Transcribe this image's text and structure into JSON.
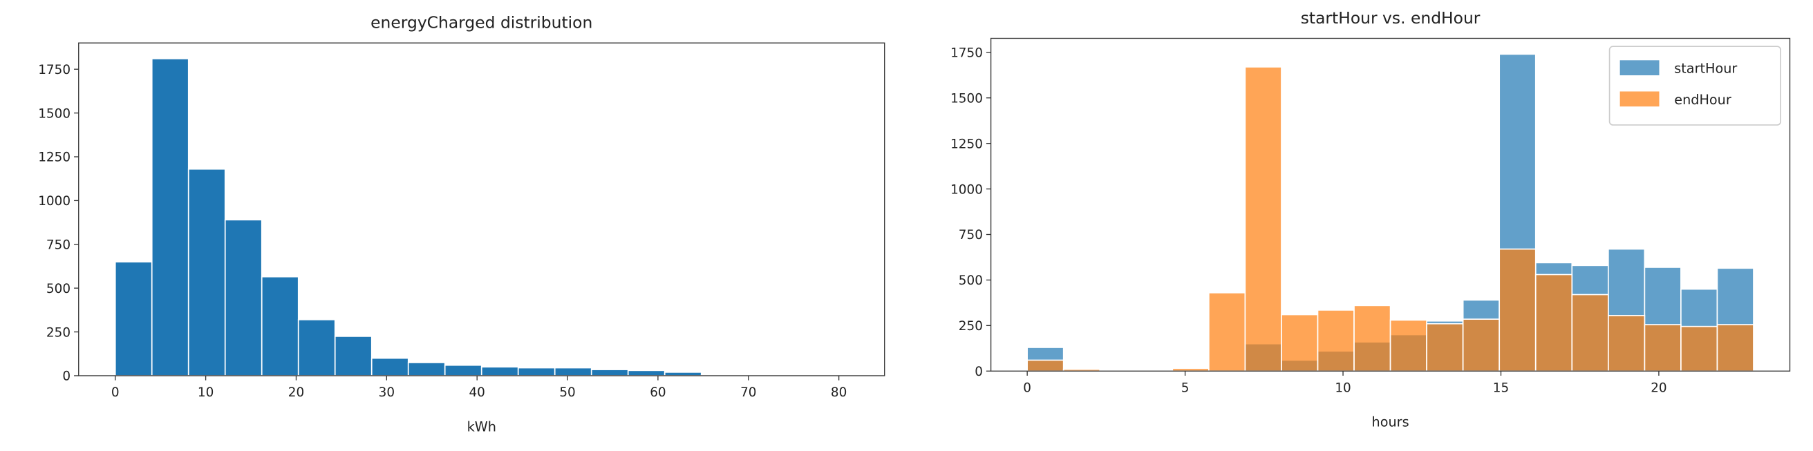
{
  "chart_data": [
    {
      "type": "histogram",
      "title": "energyCharged distribution",
      "xlabel": "kWh",
      "bins": [
        0,
        4.05,
        8.1,
        12.15,
        16.2,
        20.25,
        24.3,
        28.35,
        32.4,
        36.45,
        40.5,
        44.55,
        48.6,
        52.65,
        56.7,
        60.75,
        64.8,
        68.85,
        72.9,
        76.95,
        81
      ],
      "values": [
        650,
        1810,
        1180,
        890,
        565,
        320,
        225,
        100,
        75,
        60,
        50,
        45,
        45,
        35,
        30,
        20,
        5,
        3,
        2,
        1
      ],
      "color": "#1f77b4",
      "xlim": [
        -4.05,
        85.05
      ],
      "ylim": [
        0,
        1900
      ],
      "xticks": [
        0,
        10,
        20,
        30,
        40,
        50,
        60,
        70,
        80
      ],
      "yticks": [
        0,
        250,
        500,
        750,
        1000,
        1250,
        1500,
        1750
      ]
    },
    {
      "type": "histogram",
      "title": "startHour vs. endHour",
      "xlabel": "hours",
      "bins": [
        0,
        1.15,
        2.3,
        3.45,
        4.6,
        5.75,
        6.9,
        8.05,
        9.2,
        10.35,
        11.5,
        12.65,
        13.8,
        14.95,
        16.1,
        17.25,
        18.4,
        19.55,
        20.7,
        21.85,
        23
      ],
      "series": [
        {
          "name": "startHour",
          "color": "#1f77b4",
          "values": [
            130,
            3,
            0,
            0,
            0,
            5,
            150,
            60,
            110,
            160,
            200,
            275,
            390,
            1740,
            595,
            580,
            670,
            570,
            450,
            565
          ]
        },
        {
          "name": "endHour",
          "color": "#ff7f0e",
          "values": [
            60,
            10,
            3,
            5,
            15,
            430,
            1670,
            310,
            335,
            360,
            280,
            260,
            285,
            670,
            530,
            420,
            305,
            255,
            245,
            255
          ]
        }
      ],
      "opacity": 0.7,
      "legend": "upper right",
      "xlim": [
        -1.15,
        24.15
      ],
      "ylim": [
        0,
        1827
      ],
      "xticks": [
        0,
        5,
        10,
        15,
        20
      ],
      "yticks": [
        0,
        250,
        500,
        750,
        1000,
        1250,
        1500,
        1750
      ]
    }
  ]
}
